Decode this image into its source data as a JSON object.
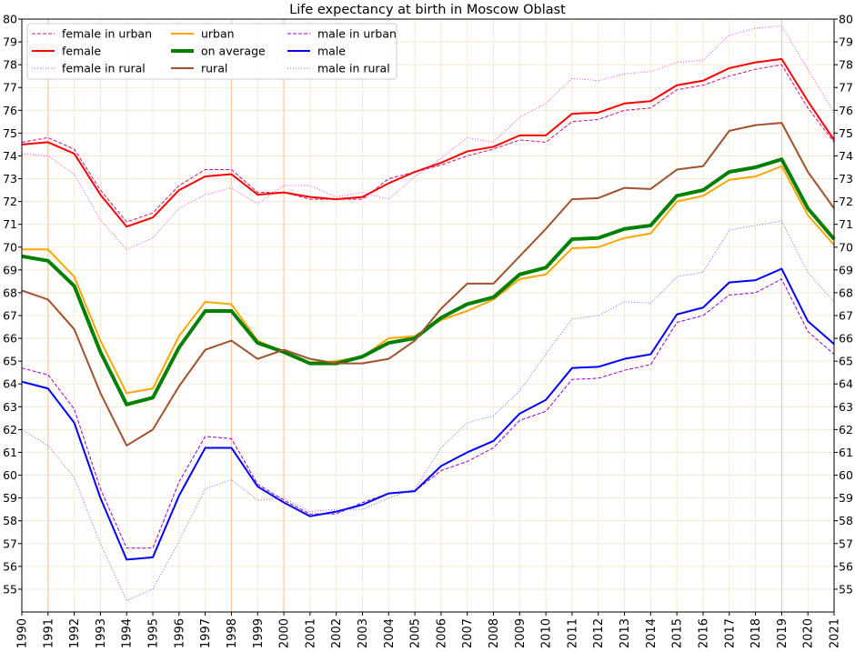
{
  "chart_data": {
    "type": "line",
    "title": "Life expectancy at birth in Moscow Oblast",
    "xlabel": "",
    "ylabel": "",
    "xlim": [
      1990,
      2021
    ],
    "ylim": [
      54,
      80
    ],
    "yticks": [
      55,
      56,
      57,
      58,
      59,
      60,
      61,
      62,
      63,
      64,
      65,
      66,
      67,
      68,
      69,
      70,
      71,
      72,
      73,
      74,
      75,
      76,
      77,
      78,
      79,
      80
    ],
    "x": [
      1990,
      1991,
      1992,
      1993,
      1994,
      1995,
      1996,
      1997,
      1998,
      1999,
      2000,
      2001,
      2002,
      2003,
      2004,
      2005,
      2006,
      2007,
      2008,
      2009,
      2010,
      2011,
      2012,
      2013,
      2014,
      2015,
      2016,
      2017,
      2018,
      2019,
      2020,
      2021
    ],
    "x_labels": [
      "1990",
      "1991",
      "1992",
      "1993",
      "1994",
      "1995",
      "1996",
      "1997",
      "1998",
      "1999",
      "2000",
      "2001",
      "2002",
      "2003",
      "2004",
      "2005",
      "2006",
      "2007",
      "2008",
      "2009",
      "2010",
      "2011",
      "2012",
      "2013",
      "2014",
      "2015",
      "2016",
      "2017",
      "2018",
      "2019",
      "2020",
      "2021"
    ],
    "grid": true,
    "highlight_years": [
      1991,
      1998,
      2000,
      2019
    ],
    "legend_position": "upper-left",
    "series": [
      {
        "name": "female in urban",
        "color": "#c71585",
        "style": "dashed",
        "width": 1,
        "values": [
          74.6,
          74.8,
          74.3,
          72.5,
          71.1,
          71.5,
          72.7,
          73.4,
          73.4,
          72.4,
          72.4,
          72.1,
          72.1,
          72.1,
          73.0,
          73.3,
          73.6,
          74.0,
          74.3,
          74.7,
          74.6,
          75.5,
          75.6,
          76.0,
          76.1,
          76.9,
          77.1,
          77.5,
          77.8,
          78.0,
          76.1,
          74.6
        ]
      },
      {
        "name": "female",
        "color": "#ff0000",
        "style": "solid",
        "width": 2,
        "values": [
          74.5,
          74.6,
          74.1,
          72.3,
          70.9,
          71.3,
          72.5,
          73.1,
          73.2,
          72.3,
          72.4,
          72.2,
          72.1,
          72.2,
          72.8,
          73.3,
          73.7,
          74.2,
          74.4,
          74.9,
          74.9,
          75.85,
          75.9,
          76.3,
          76.4,
          77.1,
          77.3,
          77.85,
          78.1,
          78.25,
          76.4,
          74.7
        ]
      },
      {
        "name": "female in rural",
        "color": "#ee44ee",
        "style": "dotted",
        "width": 1,
        "values": [
          74.1,
          74.0,
          73.2,
          71.2,
          69.9,
          70.4,
          71.7,
          72.3,
          72.6,
          71.9,
          72.7,
          72.7,
          72.2,
          72.4,
          72.1,
          73.1,
          73.9,
          74.8,
          74.6,
          75.7,
          76.3,
          77.4,
          77.3,
          77.6,
          77.7,
          78.1,
          78.2,
          79.3,
          79.6,
          79.7,
          77.8,
          75.9
        ]
      },
      {
        "name": "urban",
        "color": "#ffa500",
        "style": "solid",
        "width": 2,
        "values": [
          69.9,
          69.9,
          68.7,
          65.9,
          63.6,
          63.8,
          66.1,
          67.6,
          67.5,
          65.9,
          65.4,
          64.9,
          65.0,
          65.2,
          66.0,
          66.1,
          66.8,
          67.2,
          67.7,
          68.6,
          68.8,
          69.95,
          70.0,
          70.4,
          70.6,
          72.0,
          72.25,
          72.95,
          73.1,
          73.55,
          71.4,
          70.1
        ]
      },
      {
        "name": "on average",
        "color": "#008000",
        "style": "solid",
        "width": 4,
        "values": [
          69.6,
          69.4,
          68.3,
          65.4,
          63.1,
          63.4,
          65.6,
          67.2,
          67.2,
          65.8,
          65.4,
          64.9,
          64.9,
          65.2,
          65.8,
          66.0,
          66.9,
          67.5,
          67.8,
          68.8,
          69.1,
          70.35,
          70.4,
          70.8,
          70.95,
          72.25,
          72.5,
          73.3,
          73.5,
          73.85,
          71.7,
          70.35
        ]
      },
      {
        "name": "rural",
        "color": "#a0522d",
        "style": "solid",
        "width": 2,
        "values": [
          68.1,
          67.7,
          66.4,
          63.6,
          61.3,
          62.0,
          63.9,
          65.5,
          65.9,
          65.1,
          65.5,
          65.1,
          64.9,
          64.9,
          65.1,
          65.9,
          67.3,
          68.4,
          68.4,
          69.6,
          70.8,
          72.1,
          72.15,
          72.6,
          72.55,
          73.4,
          73.55,
          75.1,
          75.35,
          75.45,
          73.3,
          71.7
        ]
      },
      {
        "name": "male in urban",
        "color": "#9400d3",
        "style": "dashed",
        "width": 1,
        "values": [
          64.7,
          64.4,
          62.9,
          59.4,
          56.8,
          56.8,
          59.7,
          61.7,
          61.6,
          59.6,
          58.9,
          58.3,
          58.3,
          58.8,
          59.2,
          59.3,
          60.2,
          60.6,
          61.2,
          62.4,
          62.8,
          64.2,
          64.25,
          64.6,
          64.85,
          66.7,
          67.0,
          67.9,
          68.0,
          68.6,
          66.3,
          65.3
        ]
      },
      {
        "name": "male",
        "color": "#0000ff",
        "style": "solid",
        "width": 2,
        "values": [
          64.1,
          63.8,
          62.3,
          59.0,
          56.3,
          56.4,
          59.1,
          61.2,
          61.2,
          59.5,
          58.8,
          58.2,
          58.4,
          58.7,
          59.2,
          59.3,
          60.4,
          61.0,
          61.5,
          62.7,
          63.3,
          64.7,
          64.75,
          65.1,
          65.3,
          67.05,
          67.35,
          68.45,
          68.55,
          69.05,
          66.75,
          65.75
        ]
      },
      {
        "name": "male in rural",
        "color": "#7b68ee",
        "style": "dotted",
        "width": 1,
        "values": [
          62.0,
          61.3,
          59.9,
          57.0,
          54.5,
          55.0,
          57.1,
          59.4,
          59.8,
          58.9,
          59.0,
          58.4,
          58.5,
          58.5,
          59.0,
          59.4,
          61.2,
          62.3,
          62.6,
          63.7,
          65.3,
          66.85,
          67.0,
          67.6,
          67.55,
          68.7,
          68.9,
          70.75,
          70.95,
          71.15,
          68.9,
          67.6
        ]
      }
    ]
  }
}
